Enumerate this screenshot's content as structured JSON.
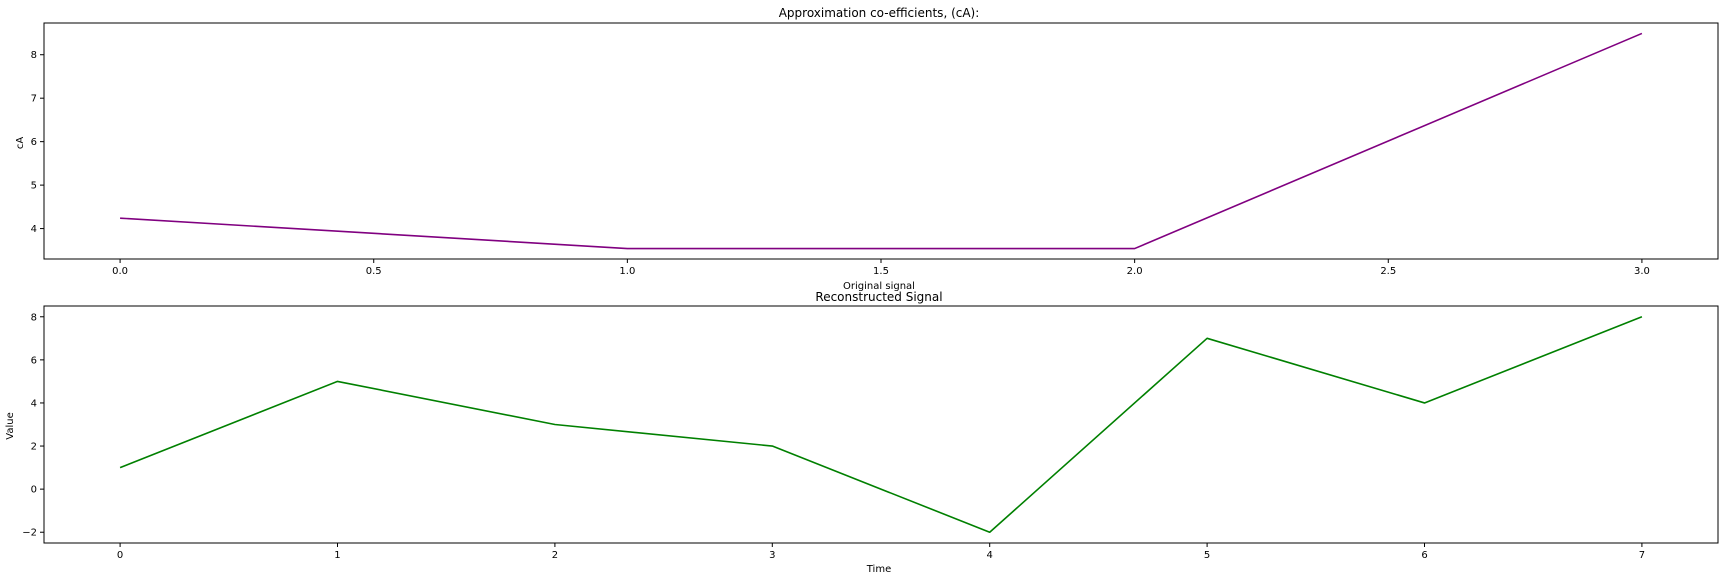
{
  "chart_data": [
    {
      "type": "line",
      "title": "Approximation co-efficients, (cA):",
      "xlabel": "Original signal",
      "ylabel": "cA",
      "x": [
        0,
        1,
        2,
        3
      ],
      "series": [
        {
          "values": [
            4.24,
            3.54,
            3.54,
            8.49
          ],
          "color": "#800080"
        }
      ],
      "xlim": [
        -0.15,
        3.15
      ],
      "ylim": [
        3.3,
        8.73
      ],
      "xticks": [
        0.0,
        0.5,
        1.0,
        1.5,
        2.0,
        2.5,
        3.0
      ],
      "xtick_labels": [
        "0.0",
        "0.5",
        "1.0",
        "1.5",
        "2.0",
        "2.5",
        "3.0"
      ],
      "yticks": [
        4,
        5,
        6,
        7,
        8
      ],
      "ytick_labels": [
        "4",
        "5",
        "6",
        "7",
        "8"
      ],
      "grid": false
    },
    {
      "type": "line",
      "title": "Reconstructed Signal",
      "xlabel": "Time",
      "ylabel": "Value",
      "x": [
        0,
        1,
        2,
        3,
        4,
        5,
        6,
        7
      ],
      "series": [
        {
          "values": [
            1,
            5,
            3,
            2,
            -2,
            7,
            4,
            8
          ],
          "color": "#008000"
        }
      ],
      "xlim": [
        -0.35,
        7.35
      ],
      "ylim": [
        -2.5,
        8.5
      ],
      "xticks": [
        0,
        1,
        2,
        3,
        4,
        5,
        6,
        7
      ],
      "xtick_labels": [
        "0",
        "1",
        "2",
        "3",
        "4",
        "5",
        "6",
        "7"
      ],
      "yticks": [
        -2,
        0,
        2,
        4,
        6,
        8
      ],
      "ytick_labels": [
        "−2",
        "0",
        "2",
        "4",
        "6",
        "8"
      ],
      "grid": false
    }
  ]
}
